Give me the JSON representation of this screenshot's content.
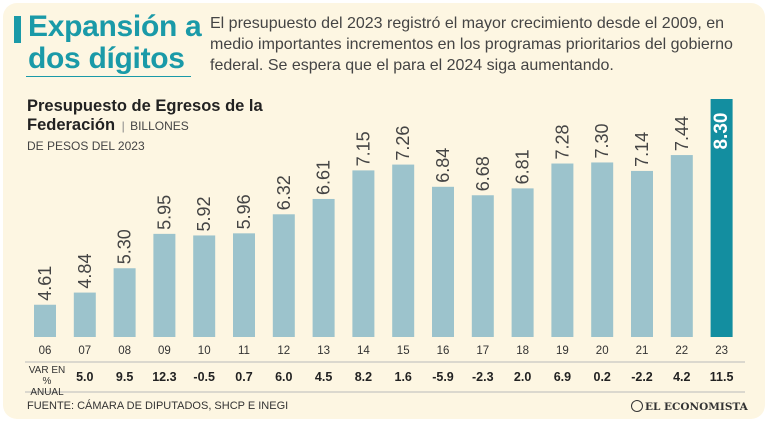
{
  "header": {
    "headline": "Expansión a dos dígitos",
    "intro": "El presupuesto del 2023 registró el mayor crecimiento desde el 2009, en medio importantes incrementos en los programas prioritarios del gobierno federal. Se espera que el para el 2024 siga aumentando."
  },
  "chart_title": {
    "main": "Presupuesto de Egresos de la Federación",
    "units_1": "BILLONES",
    "units_2": "DE PESOS DEL 2023"
  },
  "var_label": "VAR EN % ANUAL",
  "footer": {
    "source": "FUENTE: CÁMARA DE DIPUTADOS, SHCP E INEGI",
    "brand": "EL ECONOMISTA"
  },
  "colors": {
    "accent": "#1a9aa8",
    "bar": "#9cc3cc",
    "highlight": "#138ea0",
    "background": "#fdf6e2"
  },
  "chart_data": {
    "type": "bar",
    "title": "Presupuesto de Egresos de la Federación",
    "ylabel": "Billones de pesos del 2023",
    "ylim": [
      4,
      8.5
    ],
    "categories": [
      "06",
      "07",
      "08",
      "09",
      "10",
      "11",
      "12",
      "13",
      "14",
      "15",
      "16",
      "17",
      "18",
      "19",
      "20",
      "21",
      "22",
      "23"
    ],
    "value_labels": [
      "4.61",
      "4.84",
      "5.30",
      "5.95",
      "5.92",
      "5.96",
      "6.32",
      "6.61",
      "7.15",
      "7.26",
      "6.84",
      "6.68",
      "6.81",
      "7.28",
      "7.30",
      "7.14",
      "7.44",
      "8.30"
    ],
    "values": [
      4.61,
      4.84,
      5.3,
      5.95,
      5.92,
      5.96,
      6.32,
      6.61,
      7.15,
      7.26,
      6.84,
      6.68,
      6.81,
      7.28,
      7.3,
      7.14,
      7.44,
      8.3
    ],
    "annual_change_pct_labels": [
      "5.0",
      "9.5",
      "12.3",
      "-0.5",
      "0.7",
      "6.0",
      "4.5",
      "8.2",
      "1.6",
      "-5.9",
      "-2.3",
      "2.0",
      "6.9",
      "0.2",
      "-2.2",
      "4.2",
      "11.5"
    ],
    "highlight_category": "23"
  }
}
